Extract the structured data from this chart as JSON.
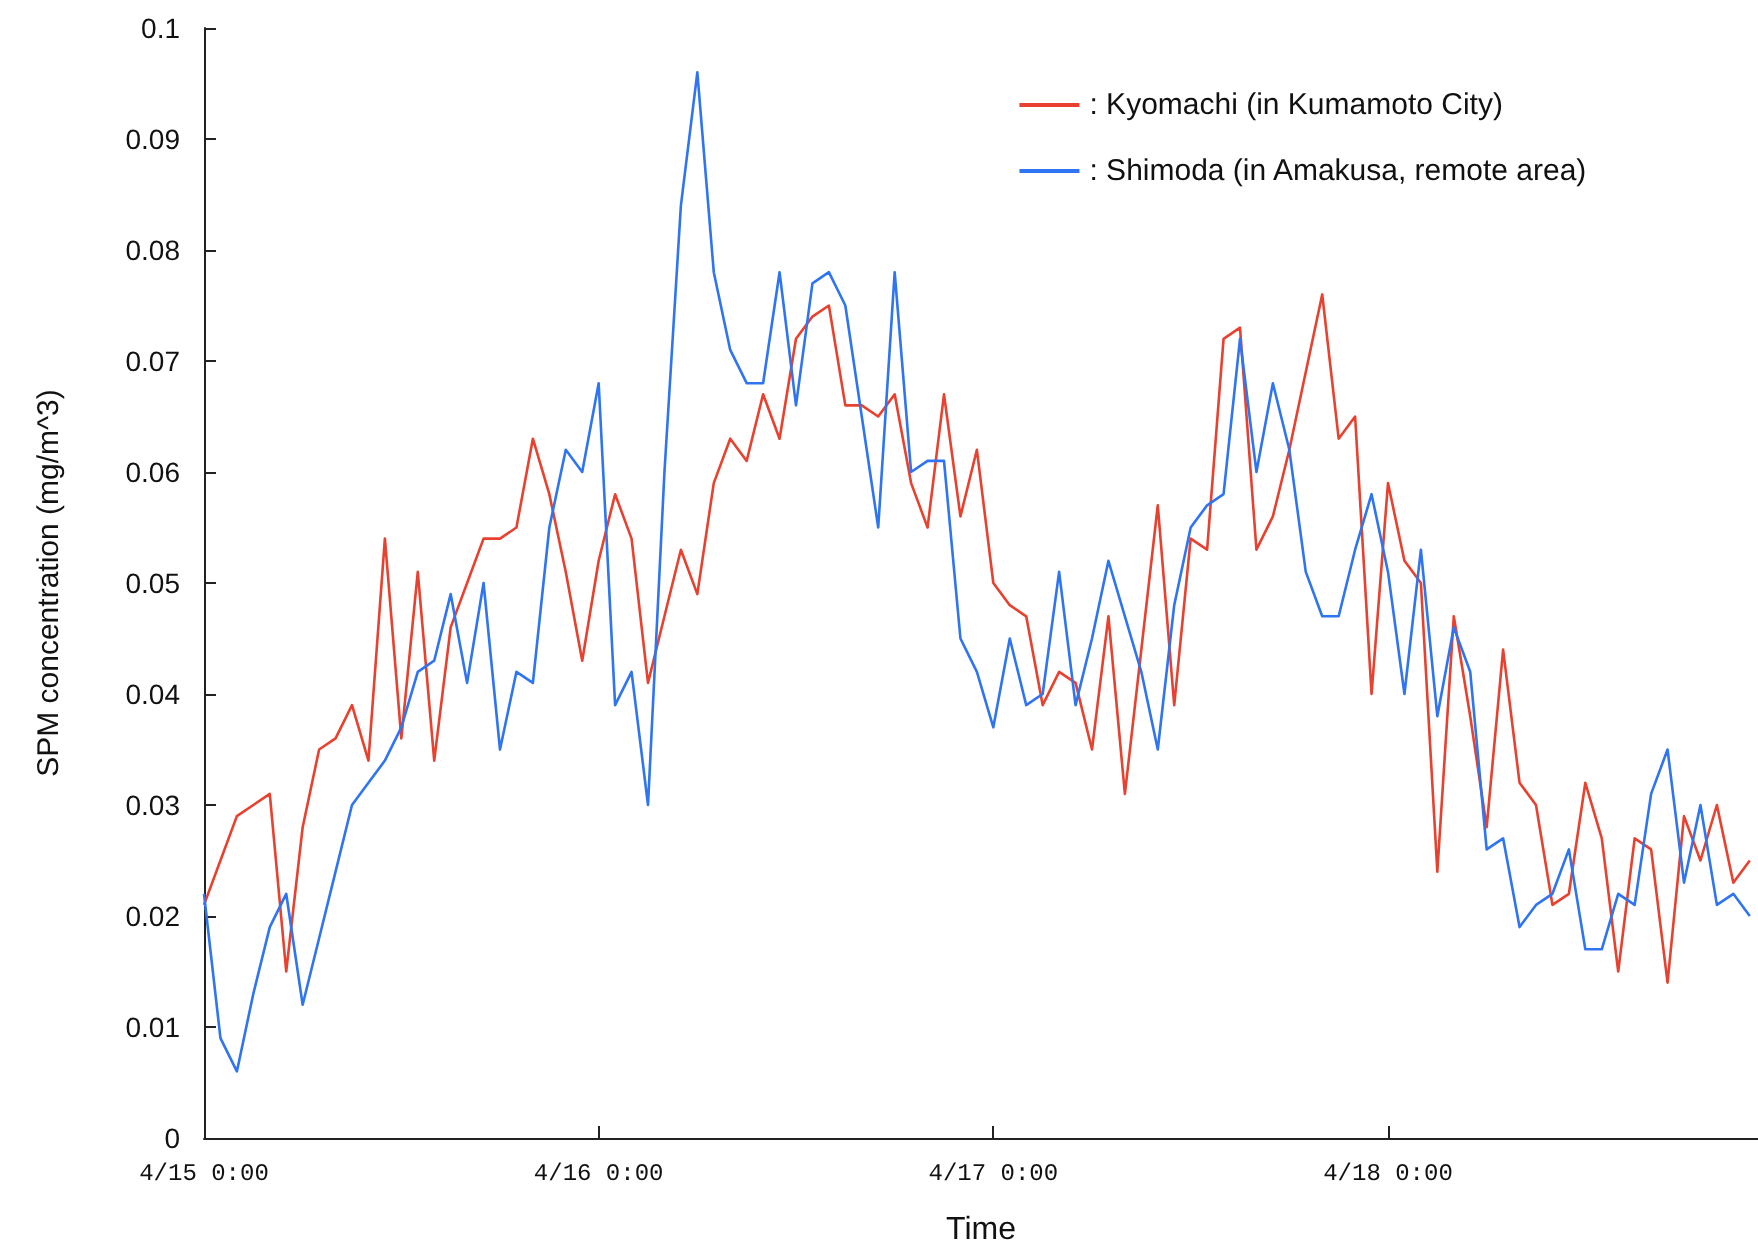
{
  "chart_data": {
    "type": "line",
    "xlabel": "Time",
    "ylabel": "SPM concentration (mg/m^3)",
    "x": [
      "--04-15T00:00",
      "--04-15T01:00",
      "--04-15T02:00",
      "--04-15T03:00",
      "--04-15T04:00",
      "--04-15T05:00",
      "--04-15T06:00",
      "--04-15T07:00",
      "--04-15T08:00",
      "--04-15T09:00",
      "--04-15T10:00",
      "--04-15T11:00",
      "--04-15T12:00",
      "--04-15T13:00",
      "--04-15T14:00",
      "--04-15T15:00",
      "--04-15T16:00",
      "--04-15T17:00",
      "--04-15T18:00",
      "--04-15T19:00",
      "--04-15T20:00",
      "--04-15T21:00",
      "--04-15T22:00",
      "--04-15T23:00",
      "--04-16T00:00",
      "--04-16T01:00",
      "--04-16T02:00",
      "--04-16T03:00",
      "--04-16T04:00",
      "--04-16T05:00",
      "--04-16T06:00",
      "--04-16T07:00",
      "--04-16T08:00",
      "--04-16T09:00",
      "--04-16T10:00",
      "--04-16T11:00",
      "--04-16T12:00",
      "--04-16T13:00",
      "--04-16T14:00",
      "--04-16T15:00",
      "--04-16T16:00",
      "--04-16T17:00",
      "--04-16T18:00",
      "--04-16T19:00",
      "--04-16T20:00",
      "--04-16T21:00",
      "--04-16T22:00",
      "--04-16T23:00",
      "--04-17T00:00",
      "--04-17T01:00",
      "--04-17T02:00",
      "--04-17T03:00",
      "--04-17T04:00",
      "--04-17T05:00",
      "--04-17T06:00",
      "--04-17T07:00",
      "--04-17T08:00",
      "--04-17T09:00",
      "--04-17T10:00",
      "--04-17T11:00",
      "--04-17T12:00",
      "--04-17T13:00",
      "--04-17T14:00",
      "--04-17T15:00",
      "--04-17T16:00",
      "--04-17T17:00",
      "--04-17T18:00",
      "--04-17T19:00",
      "--04-17T20:00",
      "--04-17T21:00",
      "--04-17T22:00",
      "--04-17T23:00",
      "--04-18T00:00",
      "--04-18T01:00",
      "--04-18T02:00",
      "--04-18T03:00",
      "--04-18T04:00",
      "--04-18T05:00",
      "--04-18T06:00",
      "--04-18T07:00",
      "--04-18T08:00",
      "--04-18T09:00",
      "--04-18T10:00",
      "--04-18T11:00",
      "--04-18T12:00",
      "--04-18T13:00",
      "--04-18T14:00",
      "--04-18T15:00",
      "--04-18T16:00",
      "--04-18T17:00",
      "--04-18T18:00",
      "--04-18T19:00",
      "--04-18T20:00",
      "--04-18T21:00",
      "--04-18T22:00"
    ],
    "series": [
      {
        "name": ": Kyomachi (in Kumamoto City)",
        "color": "#e8412f",
        "values": [
          0.021,
          0.025,
          0.029,
          0.03,
          0.031,
          0.015,
          0.028,
          0.035,
          0.036,
          0.039,
          0.034,
          0.054,
          0.036,
          0.051,
          0.034,
          0.046,
          0.05,
          0.054,
          0.054,
          0.055,
          0.063,
          0.058,
          0.051,
          0.043,
          0.052,
          0.058,
          0.054,
          0.041,
          0.047,
          0.053,
          0.049,
          0.059,
          0.063,
          0.061,
          0.067,
          0.063,
          0.072,
          0.074,
          0.075,
          0.066,
          0.066,
          0.065,
          0.067,
          0.059,
          0.055,
          0.067,
          0.056,
          0.062,
          0.05,
          0.048,
          0.047,
          0.039,
          0.042,
          0.041,
          0.035,
          0.047,
          0.031,
          0.044,
          0.057,
          0.039,
          0.054,
          0.053,
          0.072,
          0.073,
          0.053,
          0.056,
          0.062,
          0.069,
          0.076,
          0.063,
          0.065,
          0.04,
          0.059,
          0.052,
          0.05,
          0.024,
          0.047,
          0.038,
          0.028,
          0.044,
          0.032,
          0.03,
          0.021,
          0.022,
          0.032,
          0.027,
          0.015,
          0.027,
          0.026,
          0.014,
          0.029,
          0.025,
          0.03,
          0.023,
          0.025
        ]
      },
      {
        "name": ": Shimoda (in Amakusa, remote area)",
        "color": "#2f74f0",
        "values": [
          0.022,
          0.009,
          0.006,
          0.013,
          0.019,
          0.022,
          0.012,
          0.018,
          0.024,
          0.03,
          0.032,
          0.034,
          0.037,
          0.042,
          0.043,
          0.049,
          0.041,
          0.05,
          0.035,
          0.042,
          0.041,
          0.055,
          0.062,
          0.06,
          0.068,
          0.039,
          0.042,
          0.03,
          0.06,
          0.084,
          0.096,
          0.078,
          0.071,
          0.068,
          0.068,
          0.078,
          0.066,
          0.077,
          0.078,
          0.075,
          0.065,
          0.055,
          0.078,
          0.06,
          0.061,
          0.061,
          0.045,
          0.042,
          0.037,
          0.045,
          0.039,
          0.04,
          0.051,
          0.039,
          0.045,
          0.052,
          0.047,
          0.042,
          0.035,
          0.048,
          0.055,
          0.057,
          0.058,
          0.072,
          0.06,
          0.068,
          0.062,
          0.051,
          0.047,
          0.047,
          0.053,
          0.058,
          0.051,
          0.04,
          0.053,
          0.038,
          0.046,
          0.042,
          0.026,
          0.027,
          0.019,
          0.021,
          0.022,
          0.026,
          0.017,
          0.017,
          0.022,
          0.021,
          0.031,
          0.035,
          0.023,
          0.03,
          0.021,
          0.022,
          0.02
        ]
      }
    ],
    "xlim": [
      "--04-15T00:00",
      "--04-18T22:30"
    ],
    "xticks": [
      {
        "value": "--04-15T00:00",
        "label": "4/15 0:00"
      },
      {
        "value": "--04-16T00:00",
        "label": "4/16 0:00"
      },
      {
        "value": "--04-17T00:00",
        "label": "4/17 0:00"
      },
      {
        "value": "--04-18T00:00",
        "label": "4/18 0:00"
      }
    ],
    "ylim": [
      0,
      0.1
    ],
    "yticks": [
      0,
      0.01,
      0.02,
      0.03,
      0.04,
      0.05,
      0.06,
      0.07,
      0.08,
      0.09,
      0.1
    ],
    "grid": false,
    "legend": "top right",
    "marker": "none",
    "line_style": "solid"
  }
}
